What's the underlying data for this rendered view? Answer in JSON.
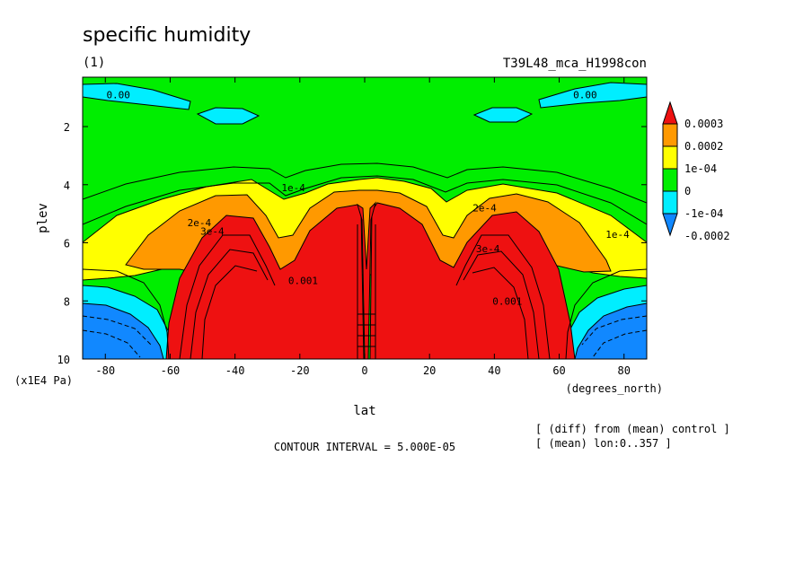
{
  "header": {
    "title": "specific humidity",
    "panel_index": "(1)",
    "experiment": "T39L48_mca_H1998con"
  },
  "footer": {
    "contour_interval": "CONTOUR INTERVAL = 5.000E-05",
    "note_line1": "[ (diff) from (mean) control ]",
    "note_line2": "[ (mean) lon:0..357 ]"
  },
  "chart_data": {
    "type": "heatmap",
    "title": "specific humidity",
    "xlabel": "lat",
    "xunit": "(degrees_north)",
    "ylabel": "plev",
    "yunit": "(x1E4 Pa)",
    "xlim": [
      -87,
      87
    ],
    "ylim": [
      0.3,
      10
    ],
    "y_inverted": true,
    "xticks": [
      -80,
      -60,
      -40,
      -20,
      0,
      20,
      40,
      60,
      80
    ],
    "xtick_labels": [
      "-80",
      "-60",
      "-40",
      "-20",
      "0",
      "20",
      "40",
      "60",
      "80"
    ],
    "yticks": [
      2,
      4,
      6,
      8,
      10
    ],
    "ytick_labels": [
      "2",
      "4",
      "6",
      "8",
      "10"
    ],
    "grid": false,
    "contour_interval": 5e-05,
    "colorbar": {
      "levels": [
        "0.0003",
        "0.0002",
        "1e-04",
        "0",
        "-1e-04",
        "-0.0002"
      ],
      "colors": [
        "#ee1111",
        "#ff9900",
        "#ffff00",
        "#00ee00",
        "#00eeff",
        "#1188ff"
      ],
      "extend": "both",
      "placement": "right"
    },
    "band_colors": {
      "high": "#ee1111",
      "mid_high": "#ff9900",
      "mid": "#ffff00",
      "zero": "#00ee00",
      "neg": "#00eeff",
      "neg_low": "#1188ff"
    },
    "contour_labels": [
      {
        "text": "0.00",
        "lat": -76,
        "p": 0.9
      },
      {
        "text": "0.00",
        "lat": 68,
        "p": 0.9
      },
      {
        "text": "1e-4",
        "lat": -22,
        "p": 4.1
      },
      {
        "text": "1e-4",
        "lat": 78,
        "p": 5.7
      },
      {
        "text": "2e-4",
        "lat": -51,
        "p": 5.3
      },
      {
        "text": "2e-4",
        "lat": 37,
        "p": 4.8
      },
      {
        "text": "3e-4",
        "lat": -47,
        "p": 5.6
      },
      {
        "text": "3e-4",
        "lat": 38,
        "p": 6.2
      },
      {
        "text": "0.001",
        "lat": 44,
        "p": 8.0
      },
      {
        "text": "0.001",
        "lat": -19,
        "p": 7.3
      }
    ],
    "shape_notes": "Positive moisture difference maximum (>0.0003) in the lower troposphere between about 55S and 55N with a narrow minimum at the equator; negative anomalies poleward of 60 degrees near the surface and near the model top."
  }
}
